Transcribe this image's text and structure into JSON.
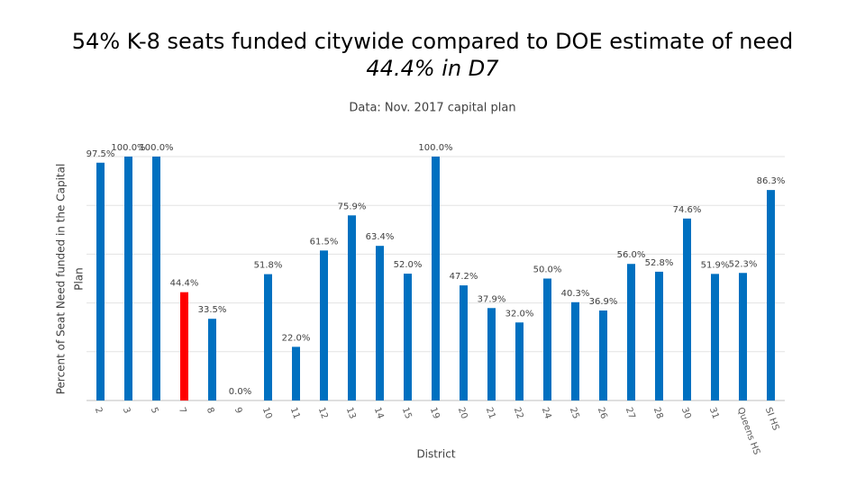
{
  "chart_data": {
    "type": "bar",
    "title": "54% K-8 seats funded citywide compared to DOE estimate of need",
    "subtitle": "44.4% in D7",
    "note": "Data: Nov. 2017 capital plan",
    "x_label": "District",
    "y_label": [
      "Percent of Seat Need funded in the Capital",
      "Plan"
    ],
    "categories": [
      "2",
      "3",
      "5",
      "7",
      "8",
      "9",
      "10",
      "11",
      "12",
      "13",
      "14",
      "15",
      "19",
      "20",
      "21",
      "22",
      "24",
      "25",
      "26",
      "27",
      "28",
      "30",
      "31",
      "Queens HS",
      "SI HS"
    ],
    "values": [
      97.5,
      100.0,
      100.0,
      44.4,
      33.5,
      0.0,
      51.8,
      22.0,
      61.5,
      75.9,
      63.4,
      52.0,
      100.0,
      47.2,
      37.9,
      32.0,
      50.0,
      40.3,
      36.9,
      56.0,
      52.8,
      74.6,
      51.9,
      52.3,
      86.3
    ],
    "value_labels": [
      "97.5%",
      "100.0%",
      "100.0%",
      "44.4%",
      "33.5%",
      "0.0%",
      "51.8%",
      "22.0%",
      "61.5%",
      "75.9%",
      "63.4%",
      "52.0%",
      "100.0%",
      "47.2%",
      "37.9%",
      "32.0%",
      "50.0%",
      "40.3%",
      "36.9%",
      "56.0%",
      "52.8%",
      "74.6%",
      "51.9%",
      "52.3%",
      "86.3%"
    ],
    "colors": [
      "#0070c0",
      "#0070c0",
      "#0070c0",
      "#ff0000",
      "#0070c0",
      "#0070c0",
      "#0070c0",
      "#0070c0",
      "#0070c0",
      "#0070c0",
      "#0070c0",
      "#0070c0",
      "#0070c0",
      "#0070c0",
      "#0070c0",
      "#0070c0",
      "#0070c0",
      "#0070c0",
      "#0070c0",
      "#0070c0",
      "#0070c0",
      "#0070c0",
      "#0070c0",
      "#0070c0",
      "#0070c0"
    ],
    "ylim": [
      0,
      100
    ],
    "grid_values": [
      0,
      20,
      40,
      60,
      80,
      100
    ],
    "grid": true
  }
}
